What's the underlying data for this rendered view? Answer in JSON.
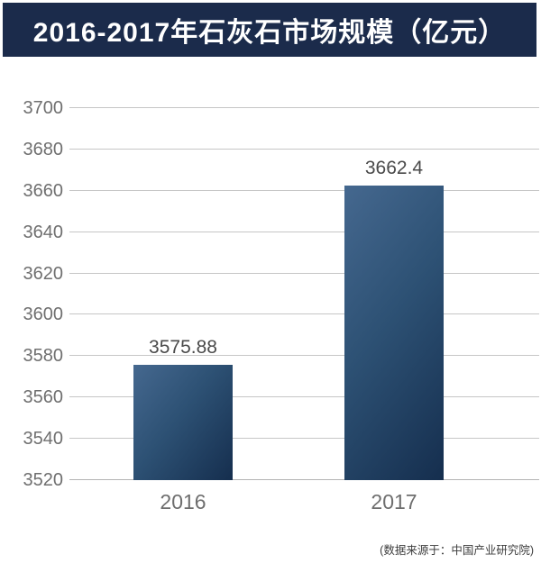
{
  "header": {
    "title": "2016-2017年石灰石市场规模（亿元）"
  },
  "footer": {
    "source_note": "(数据来源于：中国产业研究院)"
  },
  "chart_data": {
    "type": "bar",
    "title": "2016-2017年石灰石市场规模（亿元）",
    "categories": [
      "2016",
      "2017"
    ],
    "values": [
      3575.88,
      3662.4
    ],
    "value_labels": [
      "3575.88",
      "3662.4"
    ],
    "xlabel": "",
    "ylabel": "",
    "ylim": [
      3520,
      3700
    ],
    "ytick_step": 20,
    "yticks": [
      3520,
      3540,
      3560,
      3580,
      3600,
      3620,
      3640,
      3660,
      3680,
      3700
    ],
    "grid": true,
    "legend_position": "none",
    "annotation": "(数据来源于：中国产业研究院)"
  },
  "colors": {
    "banner_bg": "#1b2b4b",
    "banner_text": "#ffffff",
    "bar_gradient_light": "#45688f",
    "bar_gradient_dark": "#152e4e",
    "gridline": "#c6c6c6",
    "axis_label": "#6f6f6f",
    "value_label": "#4a4a4a",
    "source_text": "#3d3d3d",
    "background": "#ffffff"
  }
}
